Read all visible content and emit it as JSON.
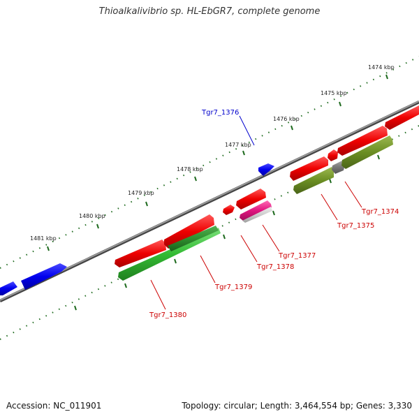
{
  "title": "Thioalkalivibrio sp. HL-EbGR7, complete genome",
  "colors": {
    "backbone": "#7a7a7a",
    "tick": "#1e6a1e",
    "forward_gene": "#0000ee",
    "red_gene": "#ee0000",
    "green_gene": "#33bb33",
    "dark_green_gene": "#2f8f2f",
    "olive_gene": "#6b8e23",
    "magenta_gene": "#e0157f",
    "grey_gene": "#777777",
    "light_grey_gene": "#c8c8c8",
    "label_blue": "#0000cc",
    "label_red": "#cc0000"
  },
  "kbp_labels": [
    "1474 kbp",
    "1475 kbp",
    "1476 kbp",
    "1477 kbp",
    "1478 kbp",
    "1479 kbp",
    "1480 kbp",
    "1481 kbp"
  ],
  "gene_labels": [
    {
      "text": "Tgr7_1376",
      "color": "blue"
    },
    {
      "text": "Tgr7_1374",
      "color": "red"
    },
    {
      "text": "Tgr7_1375",
      "color": "red"
    },
    {
      "text": "Tgr7_1377",
      "color": "red"
    },
    {
      "text": "Tgr7_1378",
      "color": "red"
    },
    {
      "text": "Tgr7_1379",
      "color": "red"
    },
    {
      "text": "Tgr7_1380",
      "color": "red"
    }
  ],
  "footer": {
    "accession": "Accession: NC_011901",
    "summary": "Topology: circular; Length: 3,464,554 bp; Genes: 3,330"
  }
}
